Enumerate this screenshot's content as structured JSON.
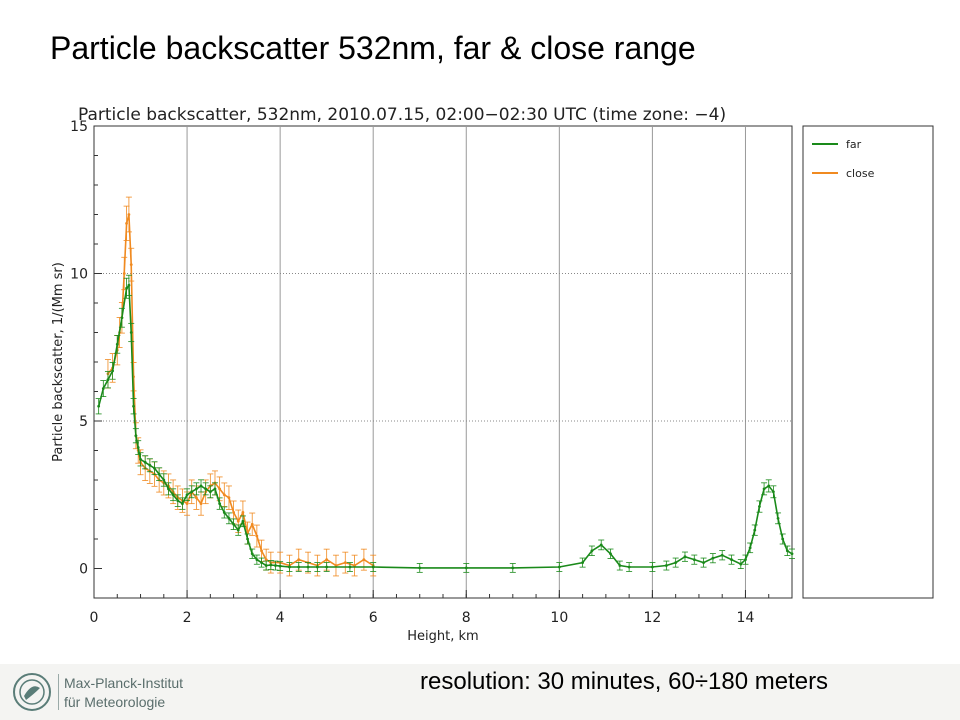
{
  "slide": {
    "title": "Particle backscatter 532nm, far & close range",
    "resolution": "resolution: 30 minutes, 60÷180 meters",
    "logo_line1": "Max-Planck-Institut",
    "logo_line2": "für Meteorologie"
  },
  "chart_data": {
    "type": "line",
    "title": "Particle backscatter, 532nm, 2010.07.15, 02:00−02:30 UTC (time zone: −4)",
    "xlabel": "Height, km",
    "ylabel": "Particle backscatter, 1/(Mm sr)",
    "xlim": [
      0,
      15
    ],
    "ylim": [
      -1,
      15
    ],
    "xticks": [
      0,
      2,
      4,
      6,
      8,
      10,
      12,
      14
    ],
    "yticks": [
      0,
      5,
      10,
      15
    ],
    "x_gridlines": [
      2,
      4,
      6,
      8,
      10,
      12,
      14
    ],
    "y_gridlines": [
      5,
      10
    ],
    "legend_position": "right panel",
    "series": [
      {
        "name": "far",
        "color": "#1a8a1a",
        "x": [
          0.1,
          0.2,
          0.3,
          0.4,
          0.5,
          0.6,
          0.7,
          0.75,
          0.8,
          0.85,
          0.9,
          0.95,
          1.0,
          1.1,
          1.2,
          1.3,
          1.4,
          1.5,
          1.6,
          1.7,
          1.8,
          1.9,
          2.0,
          2.1,
          2.2,
          2.3,
          2.4,
          2.5,
          2.6,
          2.7,
          2.8,
          2.9,
          3.0,
          3.1,
          3.2,
          3.3,
          3.4,
          3.5,
          3.6,
          3.7,
          3.8,
          3.9,
          4.0,
          4.2,
          4.4,
          4.6,
          4.8,
          5.0,
          5.5,
          6.0,
          7.0,
          8.0,
          9.0,
          10.0,
          10.5,
          10.7,
          10.9,
          11.1,
          11.3,
          11.5,
          12.0,
          12.3,
          12.5,
          12.7,
          12.9,
          13.1,
          13.3,
          13.5,
          13.7,
          13.9,
          14.0,
          14.1,
          14.2,
          14.3,
          14.4,
          14.5,
          14.6,
          14.7,
          14.8,
          14.9,
          15.0
        ],
        "y": [
          5.5,
          6.1,
          6.4,
          6.7,
          7.6,
          8.5,
          9.5,
          9.6,
          8.0,
          5.5,
          4.5,
          4.1,
          3.7,
          3.6,
          3.5,
          3.4,
          3.2,
          3.0,
          2.7,
          2.5,
          2.3,
          2.2,
          2.5,
          2.6,
          2.7,
          2.8,
          2.7,
          2.6,
          2.7,
          2.2,
          1.9,
          1.7,
          1.5,
          1.3,
          1.6,
          1.0,
          0.5,
          0.3,
          0.2,
          0.1,
          0.12,
          0.1,
          0.08,
          0.05,
          0.05,
          0.05,
          0.05,
          0.05,
          0.05,
          0.05,
          0.02,
          0.02,
          0.02,
          0.05,
          0.2,
          0.6,
          0.8,
          0.5,
          0.1,
          0.05,
          0.05,
          0.1,
          0.2,
          0.4,
          0.3,
          0.2,
          0.35,
          0.45,
          0.3,
          0.15,
          0.3,
          0.7,
          1.3,
          2.1,
          2.7,
          2.8,
          2.6,
          1.7,
          1.0,
          0.6,
          0.5
        ]
      },
      {
        "name": "close",
        "color": "#f08a20",
        "x": [
          0.3,
          0.4,
          0.5,
          0.55,
          0.6,
          0.65,
          0.7,
          0.75,
          0.8,
          0.85,
          0.9,
          0.95,
          1.0,
          1.1,
          1.2,
          1.3,
          1.4,
          1.5,
          1.6,
          1.7,
          1.8,
          1.9,
          2.0,
          2.1,
          2.2,
          2.3,
          2.4,
          2.5,
          2.6,
          2.7,
          2.8,
          2.9,
          3.0,
          3.1,
          3.2,
          3.3,
          3.4,
          3.5,
          3.6,
          3.7,
          3.8,
          4.0,
          4.2,
          4.4,
          4.6,
          4.8,
          5.0,
          5.2,
          5.4,
          5.6,
          5.8,
          6.0
        ],
        "y": [
          6.6,
          6.8,
          7.4,
          8.0,
          8.5,
          10.0,
          11.7,
          12.0,
          10.3,
          6.5,
          4.5,
          4.0,
          3.6,
          3.4,
          3.3,
          3.2,
          3.0,
          2.9,
          2.8,
          2.6,
          2.4,
          2.3,
          2.2,
          2.6,
          2.4,
          2.2,
          2.6,
          2.8,
          2.9,
          2.7,
          2.5,
          2.4,
          1.9,
          1.6,
          1.9,
          1.2,
          1.5,
          1.1,
          0.6,
          0.3,
          0.2,
          0.2,
          0.1,
          0.3,
          0.2,
          0.1,
          0.3,
          0.1,
          0.2,
          0.1,
          0.3,
          0.1
        ]
      }
    ]
  }
}
